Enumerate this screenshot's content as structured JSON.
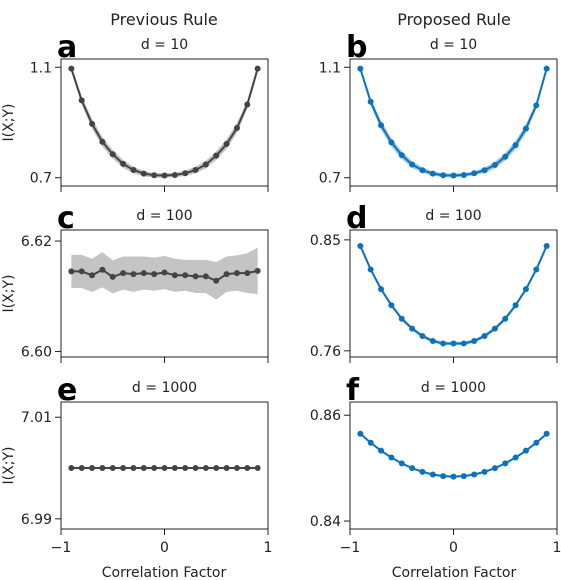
{
  "figure": {
    "column_titles": [
      "Previous Rule",
      "Proposed Rule"
    ],
    "y_axis_label": "I(X;Y)",
    "x_axis_label": "Correlation Factor"
  },
  "chart_data": [
    {
      "type": "line",
      "panel": "a",
      "column": 0,
      "row": 0,
      "title": "d = 10",
      "xlim": [
        -1,
        1
      ],
      "xticks": [
        -1,
        0,
        1
      ],
      "xticklabels": [
        "−1",
        "0",
        "1"
      ],
      "show_xticklabels": false,
      "ylim": [
        0.67,
        1.13
      ],
      "yticks": [
        0.7,
        1.1
      ],
      "yticklabels": [
        "0.7",
        "1.1"
      ],
      "color": "#444444",
      "band_color": "#c4c4c4",
      "x": [
        -0.9,
        -0.8,
        -0.7,
        -0.6,
        -0.5,
        -0.4,
        -0.3,
        -0.2,
        -0.1,
        0.0,
        0.1,
        0.2,
        0.3,
        0.4,
        0.5,
        0.6,
        0.7,
        0.8,
        0.9
      ],
      "y": [
        1.095,
        0.98,
        0.895,
        0.83,
        0.785,
        0.75,
        0.728,
        0.715,
        0.709,
        0.708,
        0.71,
        0.716,
        0.728,
        0.748,
        0.78,
        0.822,
        0.88,
        0.965,
        1.095
      ],
      "band": [
        0.012,
        0.015,
        0.018,
        0.018,
        0.016,
        0.014,
        0.012,
        0.01,
        0.008,
        0.008,
        0.008,
        0.01,
        0.012,
        0.014,
        0.016,
        0.018,
        0.018,
        0.015,
        0.012
      ]
    },
    {
      "type": "line",
      "panel": "b",
      "column": 1,
      "row": 0,
      "title": "d = 10",
      "xlim": [
        -1,
        1
      ],
      "xticks": [
        -1,
        0,
        1
      ],
      "xticklabels": [
        "−1",
        "0",
        "1"
      ],
      "show_xticklabels": false,
      "ylim": [
        0.67,
        1.13
      ],
      "yticks": [
        0.7,
        1.1
      ],
      "yticklabels": [
        "0.7",
        "1.1"
      ],
      "color": "#0d72b9",
      "band_color": "#9fc9e6",
      "x": [
        -0.9,
        -0.8,
        -0.7,
        -0.6,
        -0.5,
        -0.4,
        -0.3,
        -0.2,
        -0.1,
        0.0,
        0.1,
        0.2,
        0.3,
        0.4,
        0.5,
        0.6,
        0.7,
        0.8,
        0.9
      ],
      "y": [
        1.095,
        0.975,
        0.89,
        0.828,
        0.782,
        0.748,
        0.727,
        0.715,
        0.709,
        0.708,
        0.71,
        0.716,
        0.727,
        0.746,
        0.776,
        0.818,
        0.878,
        0.962,
        1.095
      ],
      "band": [
        0.01,
        0.013,
        0.016,
        0.016,
        0.014,
        0.012,
        0.01,
        0.008,
        0.007,
        0.007,
        0.007,
        0.008,
        0.01,
        0.012,
        0.014,
        0.016,
        0.016,
        0.013,
        0.01
      ]
    },
    {
      "type": "line",
      "panel": "c",
      "column": 0,
      "row": 1,
      "title": "d = 100",
      "xlim": [
        -1,
        1
      ],
      "xticks": [
        -1,
        0,
        1
      ],
      "xticklabels": [
        "−1",
        "0",
        "1"
      ],
      "show_xticklabels": false,
      "ylim": [
        6.599,
        6.622
      ],
      "yticks": [
        6.6,
        6.62
      ],
      "yticklabels": [
        "6.60",
        "6.62"
      ],
      "color": "#444444",
      "band_color": "#c4c4c4",
      "x": [
        -0.9,
        -0.8,
        -0.7,
        -0.6,
        -0.5,
        -0.4,
        -0.3,
        -0.2,
        -0.1,
        0.0,
        0.1,
        0.2,
        0.3,
        0.4,
        0.5,
        0.6,
        0.7,
        0.8,
        0.9
      ],
      "y": [
        6.6145,
        6.6145,
        6.6138,
        6.6148,
        6.6135,
        6.6142,
        6.614,
        6.6142,
        6.614,
        6.6143,
        6.6138,
        6.6138,
        6.6136,
        6.6136,
        6.6128,
        6.614,
        6.6142,
        6.6142,
        6.6146
      ],
      "band": [
        0.003,
        0.003,
        0.003,
        0.0032,
        0.003,
        0.003,
        0.0032,
        0.003,
        0.003,
        0.003,
        0.003,
        0.0028,
        0.003,
        0.003,
        0.0034,
        0.0032,
        0.0032,
        0.0036,
        0.0042
      ]
    },
    {
      "type": "line",
      "panel": "d",
      "column": 1,
      "row": 1,
      "title": "d = 100",
      "xlim": [
        -1,
        1
      ],
      "xticks": [
        -1,
        0,
        1
      ],
      "xticklabels": [
        "−1",
        "0",
        "1"
      ],
      "show_xticklabels": false,
      "ylim": [
        0.755,
        0.858
      ],
      "yticks": [
        0.76,
        0.85
      ],
      "yticklabels": [
        "0.76",
        "0.85"
      ],
      "color": "#0d72b9",
      "band_color": "#9fc9e6",
      "x": [
        -0.9,
        -0.8,
        -0.7,
        -0.6,
        -0.5,
        -0.4,
        -0.3,
        -0.2,
        -0.1,
        0.0,
        0.1,
        0.2,
        0.3,
        0.4,
        0.5,
        0.6,
        0.7,
        0.8,
        0.9
      ],
      "y": [
        0.845,
        0.826,
        0.81,
        0.797,
        0.786,
        0.778,
        0.772,
        0.768,
        0.766,
        0.766,
        0.766,
        0.768,
        0.772,
        0.778,
        0.786,
        0.797,
        0.81,
        0.826,
        0.845
      ],
      "band": [
        0.0015,
        0.0015,
        0.0015,
        0.0015,
        0.0015,
        0.0015,
        0.0015,
        0.0015,
        0.0015,
        0.0015,
        0.0015,
        0.0015,
        0.0015,
        0.0015,
        0.0015,
        0.0015,
        0.0015,
        0.0015,
        0.0015
      ]
    },
    {
      "type": "line",
      "panel": "e",
      "column": 0,
      "row": 2,
      "title": "d = 1000",
      "xlim": [
        -1,
        1
      ],
      "xticks": [
        -1,
        0,
        1
      ],
      "xticklabels": [
        "−1",
        "0",
        "1"
      ],
      "show_xticklabels": true,
      "ylim": [
        6.988,
        7.013
      ],
      "yticks": [
        6.99,
        7.01
      ],
      "yticklabels": [
        "6.99",
        "7.01"
      ],
      "color": "#444444",
      "band_color": "#c4c4c4",
      "x": [
        -0.9,
        -0.8,
        -0.7,
        -0.6,
        -0.5,
        -0.4,
        -0.3,
        -0.2,
        -0.1,
        0.0,
        0.1,
        0.2,
        0.3,
        0.4,
        0.5,
        0.6,
        0.7,
        0.8,
        0.9
      ],
      "y": [
        7.0,
        7.0,
        7.0,
        7.0,
        7.0,
        7.0,
        7.0,
        7.0,
        7.0,
        7.0,
        7.0,
        7.0,
        7.0,
        7.0,
        7.0,
        7.0,
        7.0,
        7.0,
        7.0
      ],
      "band": [
        0.0001,
        0.0001,
        0.0001,
        0.0001,
        0.0001,
        0.0001,
        0.0001,
        0.0001,
        0.0001,
        0.0001,
        0.0001,
        0.0001,
        0.0001,
        0.0001,
        0.0001,
        0.0001,
        0.0001,
        0.0001,
        0.0001
      ]
    },
    {
      "type": "line",
      "panel": "f",
      "column": 1,
      "row": 2,
      "title": "d = 1000",
      "xlim": [
        -1,
        1
      ],
      "xticks": [
        -1,
        0,
        1
      ],
      "xticklabels": [
        "−1",
        "0",
        "1"
      ],
      "show_xticklabels": true,
      "ylim": [
        0.8385,
        0.8625
      ],
      "yticks": [
        0.84,
        0.86
      ],
      "yticklabels": [
        "0.84",
        "0.86"
      ],
      "color": "#0d72b9",
      "band_color": "#9fc9e6",
      "x": [
        -0.9,
        -0.8,
        -0.7,
        -0.6,
        -0.5,
        -0.4,
        -0.3,
        -0.2,
        -0.1,
        0.0,
        0.1,
        0.2,
        0.3,
        0.4,
        0.5,
        0.6,
        0.7,
        0.8,
        0.9
      ],
      "y": [
        0.8565,
        0.8548,
        0.8533,
        0.852,
        0.8509,
        0.85,
        0.8493,
        0.8488,
        0.8485,
        0.8484,
        0.8485,
        0.8488,
        0.8493,
        0.85,
        0.8509,
        0.852,
        0.8533,
        0.8548,
        0.8565
      ],
      "band": [
        0.0002,
        0.0002,
        0.0002,
        0.0002,
        0.0002,
        0.0002,
        0.0002,
        0.0002,
        0.0002,
        0.0002,
        0.0002,
        0.0002,
        0.0002,
        0.0002,
        0.0002,
        0.0002,
        0.0002,
        0.0002,
        0.0002
      ]
    }
  ]
}
